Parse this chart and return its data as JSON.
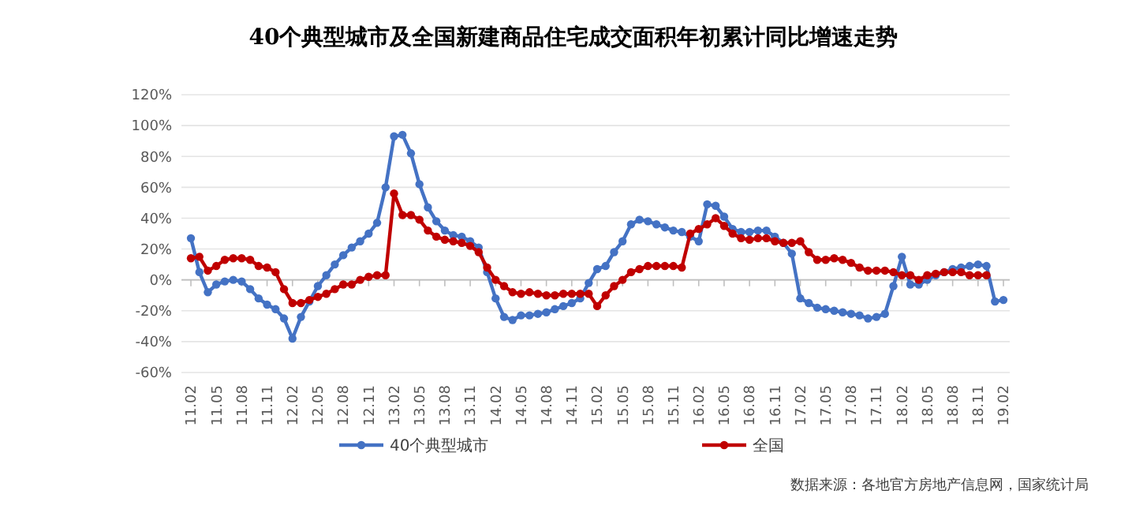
{
  "chart_data": {
    "type": "line",
    "title": "40个典型城市及全国新建商品住宅成交面积年初累计同比增速走势",
    "categories": [
      "11.02",
      null,
      null,
      "11.05",
      null,
      null,
      "11.08",
      null,
      null,
      "11.11",
      null,
      null,
      "12.02",
      null,
      null,
      "12.05",
      null,
      null,
      "12.08",
      null,
      null,
      "12.11",
      null,
      null,
      "13.02",
      null,
      null,
      "13.05",
      null,
      null,
      "13.08",
      null,
      null,
      "13.11",
      null,
      null,
      "14.02",
      null,
      null,
      "14.05",
      null,
      null,
      "14.08",
      null,
      null,
      "14.11",
      null,
      null,
      "15.02",
      null,
      null,
      "15.05",
      null,
      null,
      "15.08",
      null,
      null,
      "15.11",
      null,
      null,
      "16.02",
      null,
      null,
      "16.05",
      null,
      null,
      "16.08",
      null,
      null,
      "16.11",
      null,
      null,
      "17.02",
      null,
      null,
      "17.05",
      null,
      null,
      "17.08",
      null,
      null,
      "17.11",
      null,
      null,
      "18.02",
      null,
      null,
      "18.05",
      null,
      null,
      "18.08",
      null,
      null,
      "18.11",
      null,
      null,
      "19.02"
    ],
    "series": [
      {
        "name": "40个典型城市",
        "color": "#4472c4",
        "values": [
          27,
          5,
          -8,
          -3,
          -1,
          0,
          -1,
          -6,
          -12,
          -16,
          -19,
          -25,
          -38,
          -24,
          -14,
          -4,
          3,
          10,
          16,
          21,
          25,
          30,
          37,
          60,
          93,
          94,
          82,
          62,
          47,
          38,
          32,
          29,
          28,
          25,
          21,
          5,
          -12,
          -24,
          -26,
          -23,
          -23,
          -22,
          -21,
          -19,
          -17,
          -15,
          -12,
          -2,
          7,
          9,
          18,
          25,
          36,
          39,
          38,
          36,
          34,
          32,
          31,
          28,
          25,
          49,
          48,
          41,
          33,
          31,
          31,
          32,
          32,
          28,
          24,
          17,
          -12,
          -15,
          -18,
          -19,
          -20,
          -21,
          -22,
          -23,
          -25,
          -24,
          -22,
          -4,
          15,
          -3,
          -3,
          0,
          3,
          5,
          7,
          8,
          9,
          10,
          9,
          -14,
          -13
        ]
      },
      {
        "name": "全国",
        "color": "#c00000",
        "values": [
          14,
          15,
          6,
          9,
          13,
          14,
          14,
          13,
          9,
          8,
          5,
          -6,
          -15,
          -15,
          -13,
          -11,
          -9,
          -6,
          -3,
          -3,
          0,
          2,
          3,
          3,
          56,
          42,
          42,
          39,
          32,
          28,
          26,
          25,
          24,
          22,
          18,
          8,
          0,
          -4,
          -8,
          -9,
          -8,
          -9,
          -10,
          -10,
          -9,
          -9,
          -9,
          -9,
          -17,
          -10,
          -4,
          0,
          5,
          7,
          9,
          9,
          9,
          9,
          8,
          30,
          33,
          36,
          40,
          35,
          30,
          27,
          26,
          27,
          27,
          25,
          24,
          24,
          25,
          18,
          13,
          13,
          14,
          13,
          11,
          8,
          6,
          6,
          6,
          5,
          3,
          3,
          0,
          3,
          4,
          5,
          5,
          5,
          3,
          3,
          3,
          null,
          null
        ]
      }
    ],
    "ylim": [
      -60,
      120
    ],
    "yticks": [
      {
        "value": -60,
        "label": "-60%"
      },
      {
        "value": -40,
        "label": "-40%"
      },
      {
        "value": -20,
        "label": "-20%"
      },
      {
        "value": 0,
        "label": "0%"
      },
      {
        "value": 20,
        "label": "20%"
      },
      {
        "value": 40,
        "label": "40%"
      },
      {
        "value": 60,
        "label": "60%"
      },
      {
        "value": 80,
        "label": "80%"
      },
      {
        "value": 100,
        "label": "100%"
      },
      {
        "value": 120,
        "label": "120%"
      }
    ],
    "grid": "y",
    "legend": "bottom",
    "marker": "circle",
    "line_style": "solid",
    "annotations": [
      "数据来源：各地官方房地产信息网，国家统计局"
    ]
  }
}
